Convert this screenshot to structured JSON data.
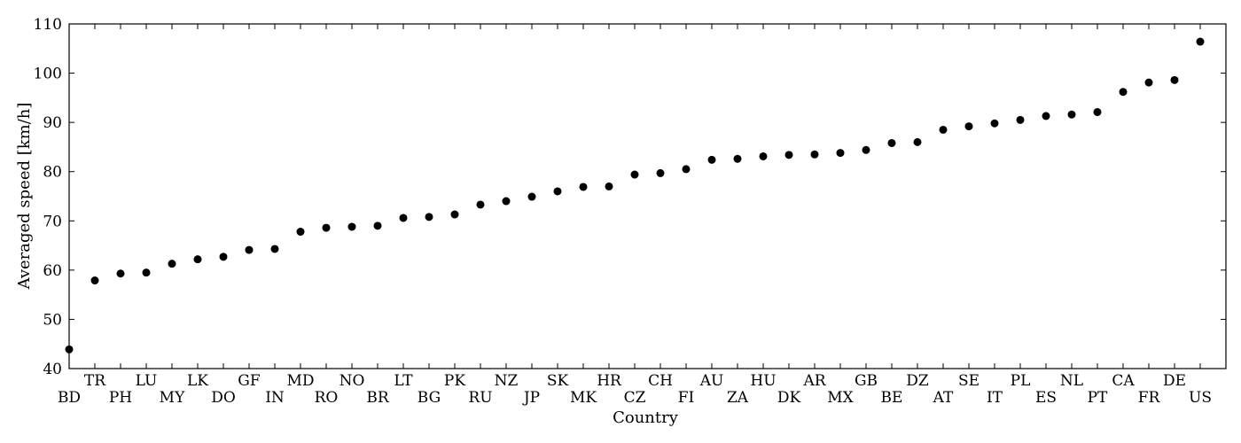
{
  "chart_data": {
    "type": "scatter",
    "xlabel": "Country",
    "ylabel": "Averaged speed [km/h]",
    "ylim": [
      40,
      110
    ],
    "yticks": [
      40,
      50,
      60,
      70,
      80,
      90,
      100,
      110
    ],
    "grid": false,
    "marker_color": "#000000",
    "categories": [
      "BD",
      "TR",
      "PH",
      "LU",
      "MY",
      "LK",
      "DO",
      "GF",
      "IN",
      "MD",
      "RO",
      "NO",
      "BR",
      "LT",
      "BG",
      "PK",
      "RU",
      "NZ",
      "JP",
      "SK",
      "MK",
      "HR",
      "CZ",
      "CH",
      "FI",
      "AU",
      "ZA",
      "HU",
      "DK",
      "AR",
      "MX",
      "GB",
      "BE",
      "DZ",
      "AT",
      "SE",
      "IT",
      "PL",
      "ES",
      "NL",
      "PT",
      "CA",
      "FR",
      "DE",
      "US"
    ],
    "values": [
      43.9,
      57.9,
      59.3,
      59.5,
      61.3,
      62.2,
      62.7,
      64.1,
      64.3,
      67.8,
      68.6,
      68.8,
      69.0,
      70.6,
      70.8,
      71.3,
      73.3,
      74.0,
      74.9,
      76.0,
      76.9,
      77.0,
      79.4,
      79.7,
      80.5,
      82.4,
      82.6,
      83.1,
      83.4,
      83.5,
      83.8,
      84.4,
      85.8,
      86.0,
      88.5,
      89.2,
      89.8,
      90.5,
      91.3,
      91.6,
      92.1,
      96.2,
      98.1,
      98.6,
      106.4
    ]
  }
}
